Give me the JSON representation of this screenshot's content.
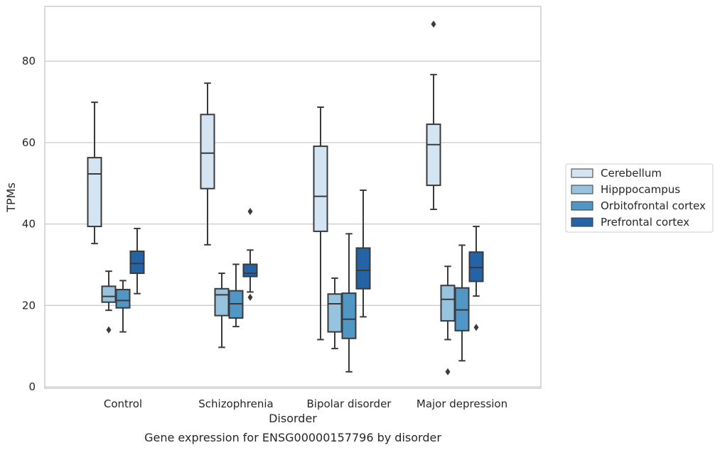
{
  "chart_data": {
    "type": "box",
    "title": "Gene expression for ENSG00000157796 by disorder",
    "xlabel": "Disorder",
    "ylabel": "TPMs",
    "ylim": [
      0,
      94
    ],
    "yticks": [
      0,
      20,
      40,
      60,
      80
    ],
    "grid": true,
    "legend_position": "right",
    "categories": [
      "Control",
      "Schizophrenia",
      "Bipolar disorder",
      "Major depression"
    ],
    "series": [
      {
        "name": "Cerebellum",
        "color": "#d3e4f3",
        "boxes": [
          {
            "whislo": 35.2,
            "q1": 39.4,
            "med": 52.3,
            "q3": 56.3,
            "whishi": 69.9,
            "fliers": []
          },
          {
            "whislo": 34.9,
            "q1": 48.7,
            "med": 57.4,
            "q3": 66.9,
            "whishi": 74.6,
            "fliers": []
          },
          {
            "whislo": 11.6,
            "q1": 38.2,
            "med": 46.8,
            "q3": 59.1,
            "whishi": 68.7,
            "fliers": []
          },
          {
            "whislo": 43.6,
            "q1": 49.5,
            "med": 59.5,
            "q3": 64.5,
            "whishi": 76.7,
            "fliers": [
              89.1
            ]
          }
        ]
      },
      {
        "name": "Hipppocampus",
        "color": "#97c3df",
        "boxes": [
          {
            "whislo": 18.8,
            "q1": 20.8,
            "med": 22.2,
            "q3": 24.7,
            "whishi": 28.4,
            "fliers": [
              14.0
            ]
          },
          {
            "whislo": 9.7,
            "q1": 17.5,
            "med": 22.6,
            "q3": 24.1,
            "whishi": 27.9,
            "fliers": []
          },
          {
            "whislo": 9.4,
            "q1": 13.5,
            "med": 20.4,
            "q3": 22.8,
            "whishi": 26.7,
            "fliers": []
          },
          {
            "whislo": 11.6,
            "q1": 16.2,
            "med": 21.5,
            "q3": 24.9,
            "whishi": 29.6,
            "fliers": [
              3.7
            ]
          }
        ]
      },
      {
        "name": "Orbitofrontal cortex",
        "color": "#5097c6",
        "boxes": [
          {
            "whislo": 13.5,
            "q1": 19.4,
            "med": 21.2,
            "q3": 23.9,
            "whishi": 26.1,
            "fliers": []
          },
          {
            "whislo": 14.8,
            "q1": 16.9,
            "med": 20.4,
            "q3": 23.6,
            "whishi": 30.1,
            "fliers": []
          },
          {
            "whislo": 3.7,
            "q1": 11.9,
            "med": 16.6,
            "q3": 23.0,
            "whishi": 37.6,
            "fliers": []
          },
          {
            "whislo": 6.4,
            "q1": 13.8,
            "med": 18.9,
            "q3": 24.3,
            "whishi": 34.8,
            "fliers": []
          }
        ]
      },
      {
        "name": "Prefrontal cortex",
        "color": "#2563a7",
        "boxes": [
          {
            "whislo": 22.9,
            "q1": 27.9,
            "med": 30.3,
            "q3": 33.3,
            "whishi": 38.9,
            "fliers": []
          },
          {
            "whislo": 23.3,
            "q1": 27.1,
            "med": 27.9,
            "q3": 30.1,
            "whishi": 33.6,
            "fliers": [
              22.0,
              43.1
            ]
          },
          {
            "whislo": 17.2,
            "q1": 24.1,
            "med": 28.6,
            "q3": 34.1,
            "whishi": 48.3,
            "fliers": []
          },
          {
            "whislo": 22.3,
            "q1": 25.9,
            "med": 29.3,
            "q3": 33.1,
            "whishi": 39.4,
            "fliers": [
              14.6
            ]
          }
        ]
      }
    ]
  }
}
